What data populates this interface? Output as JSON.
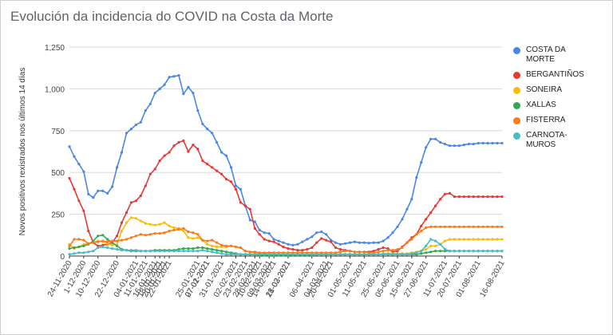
{
  "window": {
    "title": "Evolución da incidencia do COVID na Costa da Morte"
  },
  "chart_data": {
    "type": "line",
    "title": "Evolución da incidencia do COVID na Costa da Morte",
    "xlabel": "",
    "ylabel": "Novos positivos rexistrados nos últimos 14 días",
    "ylim": [
      0,
      1250
    ],
    "yticks": [
      0,
      250,
      500,
      750,
      1000,
      1250
    ],
    "grid": "horizontal",
    "legend_position": "right",
    "x": [
      "24-11-2020",
      "27-11-2020",
      "29-11-2020",
      "1-12-2020",
      "4-12-2020",
      "7-12-2020",
      "10-12-2020",
      "13-12-2020",
      "16-12-2020",
      "19-12-2020",
      "22-12-2020",
      "25-12-2020",
      "29-12-2020",
      "01-01-2021",
      "04-01-2021",
      "07-01-2021",
      "11-01-2021",
      "13-01-2021",
      "16-01-2021",
      "18-01-2021",
      "20-01-2021",
      "22-01-2021",
      "24-01-2021",
      "26-01-2021",
      "28-01-2021",
      "30-01-2021",
      "01-02-2021",
      "03-02-2021",
      "05-02-2021",
      "07-02-2021",
      "09-02-2021",
      "11-02-2021",
      "13-02-2021",
      "15-02-2021",
      "17-02-2021",
      "19-02-2021",
      "21-02-2021",
      "23-02-2021",
      "25-02-2021",
      "28-02-2021",
      "03-03-2021",
      "06-03-2021",
      "09-03-2021",
      "12-03-2021",
      "15-03-2021",
      "18-03-2021",
      "21-03-2021",
      "24-03-2021",
      "27-03-2021",
      "30-03-2021",
      "03-04-2021",
      "06-04-2021",
      "09-04-2021",
      "12-04-2021",
      "16-04-2021",
      "20-04-2021",
      "23-04-2021",
      "26-04-2021",
      "29-04-2021",
      "01-05-2021",
      "04-05-2021",
      "07-05-2021",
      "11-05-2021",
      "14-05-2021",
      "17-05-2021",
      "21-05-2021",
      "25-05-2021",
      "29-05-2021",
      "02-06-2021",
      "05-06-2021",
      "09-06-2021",
      "12-06-2021",
      "15-06-2021",
      "19-06-2021",
      "23-06-2021",
      "27-06-2021",
      "01-07-2021",
      "05-07-2021",
      "09-07-2021",
      "11-07-2021",
      "14-07-2021",
      "17-07-2021",
      "20-07-2021",
      "23-07-2021",
      "26-07-2021",
      "29-07-2021",
      "01-08-2021",
      "04-08-2021",
      "07-08-2021",
      "10-08-2021",
      "13-08-2021",
      "16-08-2021"
    ],
    "xtick_labels": [
      "24-11-2020",
      "1-12-2020",
      "10-12-2020",
      "22-12-2020",
      "04-01-2021",
      "11-01-2021",
      "16-01-2021",
      "18-01-2021",
      "20-01-2021",
      "22-01-2021",
      "25-01-2021",
      "27-01-2021",
      "31-01-2021",
      "02-02-2021",
      "07-02-2021",
      "10-02-2021",
      "14-02-2021",
      "18-02-2021",
      "23-02-2021",
      "28-02-2021",
      "04-03-2021",
      "09-03-2021",
      "21-03-2021",
      "06-04-2021",
      "20-04-2021",
      "01-05-2021",
      "11-05-2021",
      "25-05-2021",
      "05-06-2021",
      "15-06-2021",
      "27-06-2021",
      "11-07-2021",
      "20-07-2021",
      "01-08-2021",
      "16-08-2021"
    ],
    "series": [
      {
        "name": "COSTA DA MORTE",
        "color": "#4a86e8",
        "values": [
          655,
          595,
          550,
          505,
          370,
          350,
          390,
          390,
          375,
          415,
          530,
          620,
          735,
          760,
          785,
          800,
          870,
          910,
          975,
          1000,
          1025,
          1070,
          1075,
          1080,
          970,
          1010,
          975,
          870,
          790,
          760,
          735,
          680,
          620,
          600,
          530,
          420,
          400,
          300,
          215,
          205,
          155,
          140,
          135,
          100,
          90,
          80,
          70,
          65,
          70,
          85,
          100,
          115,
          140,
          145,
          130,
          95,
          80,
          70,
          75,
          80,
          85,
          80,
          80,
          78,
          80,
          80,
          90,
          110,
          140,
          175,
          220,
          280,
          340,
          470,
          560,
          650,
          700,
          700,
          680,
          670,
          660,
          660,
          660,
          665,
          670,
          670,
          675,
          675,
          675,
          675,
          675,
          675
        ]
      },
      {
        "name": "BERGANTIÑOS",
        "color": "#e53935",
        "values": [
          465,
          400,
          330,
          270,
          150,
          80,
          60,
          65,
          70,
          80,
          120,
          200,
          260,
          320,
          330,
          360,
          420,
          490,
          520,
          570,
          600,
          620,
          660,
          680,
          690,
          625,
          665,
          640,
          570,
          550,
          530,
          510,
          490,
          460,
          445,
          400,
          320,
          300,
          280,
          165,
          130,
          100,
          90,
          85,
          70,
          55,
          45,
          40,
          35,
          35,
          40,
          50,
          80,
          105,
          95,
          85,
          50,
          40,
          35,
          30,
          25,
          25,
          25,
          25,
          30,
          40,
          50,
          45,
          25,
          30,
          55,
          80,
          110,
          130,
          180,
          220,
          260,
          300,
          340,
          370,
          375,
          355,
          355,
          355,
          355,
          355,
          355,
          355,
          355,
          355,
          355,
          355
        ]
      },
      {
        "name": "SONEIRA",
        "color": "#fbbc04",
        "values": [
          70,
          45,
          55,
          70,
          75,
          80,
          90,
          85,
          75,
          65,
          70,
          150,
          200,
          230,
          225,
          210,
          195,
          190,
          185,
          190,
          200,
          180,
          170,
          165,
          150,
          110,
          105,
          110,
          95,
          70,
          60,
          55,
          55,
          55,
          60,
          55,
          50,
          30,
          25,
          20,
          15,
          15,
          15,
          10,
          10,
          10,
          10,
          10,
          10,
          10,
          10,
          10,
          10,
          10,
          10,
          10,
          10,
          10,
          10,
          10,
          10,
          10,
          10,
          10,
          10,
          10,
          15,
          15,
          15,
          15,
          15,
          15,
          20,
          25,
          30,
          40,
          60,
          60,
          70,
          90,
          100,
          100,
          100,
          100,
          100,
          100,
          100,
          100,
          100,
          100,
          100,
          100
        ]
      },
      {
        "name": "XALLAS",
        "color": "#34a853",
        "values": [
          45,
          50,
          55,
          60,
          70,
          90,
          120,
          125,
          100,
          80,
          60,
          40,
          35,
          30,
          30,
          30,
          30,
          30,
          35,
          35,
          35,
          35,
          35,
          40,
          45,
          45,
          45,
          50,
          50,
          45,
          40,
          35,
          30,
          25,
          20,
          15,
          10,
          10,
          10,
          10,
          5,
          5,
          5,
          5,
          5,
          5,
          5,
          5,
          5,
          5,
          5,
          5,
          10,
          10,
          10,
          10,
          10,
          10,
          10,
          10,
          10,
          10,
          10,
          10,
          10,
          10,
          10,
          10,
          10,
          10,
          10,
          10,
          10,
          10,
          15,
          20,
          25,
          30,
          30,
          30,
          30,
          30,
          30,
          30,
          30,
          30,
          30,
          30,
          30,
          30,
          30,
          30
        ]
      },
      {
        "name": "FISTERRA",
        "color": "#fa7a1a",
        "values": [
          60,
          100,
          100,
          95,
          75,
          80,
          85,
          90,
          85,
          90,
          90,
          95,
          100,
          110,
          120,
          130,
          125,
          130,
          135,
          135,
          140,
          150,
          155,
          160,
          165,
          145,
          140,
          130,
          95,
          90,
          95,
          80,
          65,
          60,
          60,
          55,
          50,
          30,
          25,
          25,
          20,
          20,
          20,
          20,
          20,
          20,
          20,
          20,
          20,
          20,
          20,
          20,
          20,
          20,
          20,
          20,
          20,
          25,
          30,
          30,
          25,
          25,
          25,
          20,
          20,
          25,
          30,
          35,
          35,
          40,
          50,
          80,
          100,
          130,
          150,
          170,
          175,
          175,
          175,
          175,
          175,
          175,
          175,
          175,
          175,
          175,
          175,
          175,
          175,
          175,
          175,
          175
        ]
      },
      {
        "name": "CARNOTA-MUROS",
        "color": "#46bdc6",
        "values": [
          10,
          15,
          20,
          20,
          25,
          30,
          50,
          55,
          50,
          45,
          40,
          35,
          35,
          35,
          35,
          30,
          30,
          30,
          30,
          30,
          30,
          30,
          30,
          30,
          30,
          30,
          30,
          30,
          35,
          30,
          25,
          20,
          15,
          10,
          10,
          10,
          10,
          10,
          10,
          10,
          10,
          10,
          10,
          10,
          10,
          10,
          10,
          10,
          10,
          10,
          10,
          10,
          10,
          10,
          10,
          10,
          10,
          10,
          10,
          10,
          10,
          10,
          10,
          10,
          10,
          10,
          10,
          10,
          10,
          10,
          10,
          10,
          15,
          20,
          30,
          60,
          100,
          90,
          70,
          40,
          30,
          30,
          30,
          30,
          30,
          30,
          30,
          30,
          30,
          30,
          30,
          30
        ]
      }
    ]
  }
}
